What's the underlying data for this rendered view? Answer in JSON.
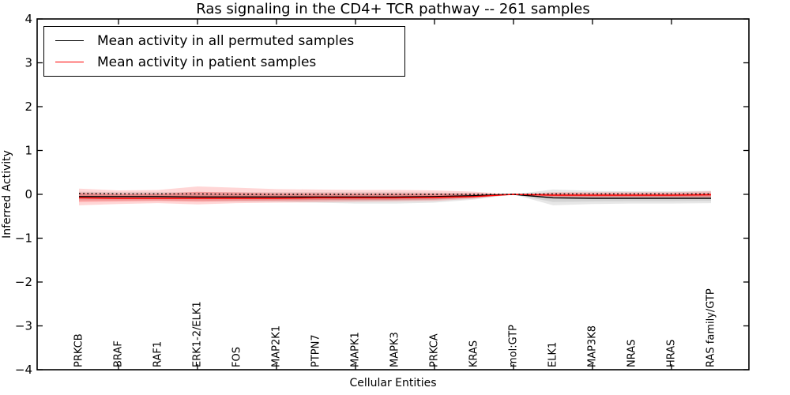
{
  "page": {
    "background": "#ffffff"
  },
  "chart_data": {
    "type": "line",
    "title": "Ras signaling in the CD4+ TCR pathway -- 261 samples",
    "xlabel": "Cellular Entities",
    "ylabel": "Inferred Activity",
    "ylim": [
      -4,
      4
    ],
    "ytick_labels": [
      "4",
      "3",
      "2",
      "1",
      "0",
      "−1",
      "−2",
      "−3",
      "−4"
    ],
    "ytick_values": [
      4,
      3,
      2,
      1,
      0,
      -1,
      -2,
      -3,
      -4
    ],
    "grid": false,
    "legend_position": "upper left",
    "legend": [
      {
        "label": "Mean activity in all permuted samples",
        "color": "#000000"
      },
      {
        "label": "Mean activity in patient samples",
        "color": "#ff0000"
      }
    ],
    "categories": [
      "PRKCB",
      "BRAF",
      "RAF1",
      "ERK1-2/ELK1",
      "FOS",
      "MAP2K1",
      "PTPN7",
      "MAPK1",
      "MAPK3",
      "PRKCA",
      "KRAS",
      "mol:GTP",
      "ELK1",
      "MAP3K8",
      "NRAS",
      "HRAS",
      "RAS family/GTP"
    ],
    "series": [
      {
        "name": "Mean activity in all permuted samples",
        "role": "permuted-mean",
        "type": "line",
        "color": "#000000",
        "values": [
          -0.05,
          -0.05,
          -0.05,
          -0.06,
          -0.06,
          -0.06,
          -0.06,
          -0.06,
          -0.06,
          -0.05,
          -0.03,
          0.0,
          -0.08,
          -0.09,
          -0.09,
          -0.09,
          -0.09
        ]
      },
      {
        "name": "Mean activity in patient samples",
        "role": "patient-mean",
        "type": "line",
        "color": "#ff0000",
        "values": [
          -0.08,
          -0.09,
          -0.09,
          -0.09,
          -0.09,
          -0.09,
          -0.08,
          -0.08,
          -0.08,
          -0.07,
          -0.05,
          0.0,
          -0.02,
          -0.02,
          -0.02,
          -0.02,
          -0.01
        ]
      },
      {
        "name": "reference-dotted",
        "role": "reference-dotted",
        "type": "line-dotted",
        "color": "#000000",
        "values": [
          0.02,
          0.01,
          0.01,
          0.01,
          0.0,
          0.0,
          0.0,
          0.0,
          0.0,
          0.0,
          0.0,
          0.0,
          0.01,
          0.01,
          0.01,
          0.01,
          0.01
        ]
      },
      {
        "name": "permuted-band",
        "role": "permuted-band",
        "type": "band",
        "color": "#7a7a7a",
        "upper": [
          0.06,
          0.05,
          0.05,
          0.05,
          0.05,
          0.05,
          0.05,
          0.05,
          0.05,
          0.04,
          0.03,
          0.0,
          0.11,
          0.08,
          0.07,
          0.07,
          0.08
        ],
        "lower": [
          -0.14,
          -0.14,
          -0.14,
          -0.15,
          -0.16,
          -0.17,
          -0.19,
          -0.21,
          -0.21,
          -0.19,
          -0.12,
          0.0,
          -0.25,
          -0.22,
          -0.21,
          -0.21,
          -0.2
        ]
      },
      {
        "name": "patient-band",
        "role": "patient-band",
        "type": "band",
        "color": "#ff0000",
        "upper": [
          0.13,
          0.09,
          0.1,
          0.18,
          0.15,
          0.12,
          0.11,
          0.1,
          0.1,
          0.09,
          0.06,
          0.0,
          0.05,
          0.05,
          0.05,
          0.05,
          0.07
        ],
        "lower": [
          -0.25,
          -0.22,
          -0.2,
          -0.23,
          -0.2,
          -0.19,
          -0.18,
          -0.17,
          -0.16,
          -0.15,
          -0.1,
          0.0,
          -0.07,
          -0.08,
          -0.08,
          -0.08,
          -0.09
        ]
      }
    ]
  }
}
